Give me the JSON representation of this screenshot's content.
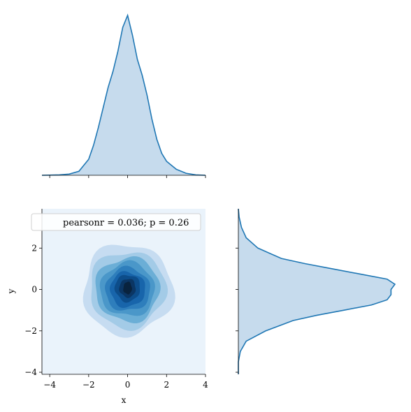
{
  "chart_data": {
    "type": "jointplot-kde",
    "xlabel": "x",
    "ylabel": "y",
    "xlim": [
      -4.4,
      4.0
    ],
    "ylim": [
      -4.1,
      3.9
    ],
    "x_ticks": [
      -4,
      -2,
      0,
      2,
      4
    ],
    "y_ticks": [
      -4,
      -2,
      0,
      2
    ],
    "x_tick_labels": [
      "−4",
      "−2",
      "0",
      "2",
      "4"
    ],
    "y_tick_labels": [
      "−4",
      "−2",
      "0",
      "2"
    ],
    "annotation": "pearsonr = 0.036; p = 0.26",
    "joint": {
      "center": [
        0.0,
        0.0
      ],
      "levels": [
        {
          "rx": 2.3,
          "ry": 2.2,
          "color": "#c6dcf1"
        },
        {
          "rx": 1.95,
          "ry": 1.85,
          "color": "#a3cbe7"
        },
        {
          "rx": 1.65,
          "ry": 1.55,
          "color": "#6baed6"
        },
        {
          "rx": 1.4,
          "ry": 1.3,
          "color": "#4a97c9"
        },
        {
          "rx": 1.15,
          "ry": 1.05,
          "color": "#2e7ebc"
        },
        {
          "rx": 0.9,
          "ry": 0.85,
          "color": "#1865ab"
        },
        {
          "rx": 0.65,
          "ry": 0.65,
          "color": "#0d4d8a"
        },
        {
          "rx": 0.42,
          "ry": 0.45,
          "color": "#0b3664"
        },
        {
          "rx": 0.22,
          "ry": 0.3,
          "color": "#09233e"
        }
      ],
      "background": "#eaf3fb"
    },
    "marginal_x": {
      "x": [
        -4.4,
        -3.5,
        -3.0,
        -2.5,
        -2.0,
        -1.75,
        -1.5,
        -1.25,
        -1.0,
        -0.75,
        -0.5,
        -0.25,
        0.0,
        0.25,
        0.5,
        0.75,
        1.0,
        1.25,
        1.5,
        1.75,
        2.0,
        2.5,
        3.0,
        3.5,
        4.0
      ],
      "density": [
        0.0,
        0.001,
        0.003,
        0.01,
        0.04,
        0.075,
        0.12,
        0.17,
        0.22,
        0.26,
        0.31,
        0.37,
        0.4,
        0.35,
        0.29,
        0.25,
        0.2,
        0.14,
        0.09,
        0.055,
        0.035,
        0.015,
        0.005,
        0.001,
        0.0
      ]
    },
    "marginal_y": {
      "y": [
        -4.1,
        -3.5,
        -3.0,
        -2.5,
        -2.0,
        -1.5,
        -1.25,
        -1.0,
        -0.75,
        -0.5,
        -0.25,
        0.0,
        0.25,
        0.5,
        0.75,
        1.0,
        1.25,
        1.5,
        2.0,
        2.5,
        3.0,
        3.5,
        3.9
      ],
      "density": [
        0.0,
        0.0,
        0.005,
        0.02,
        0.07,
        0.14,
        0.2,
        0.27,
        0.34,
        0.38,
        0.39,
        0.39,
        0.4,
        0.38,
        0.31,
        0.24,
        0.17,
        0.11,
        0.05,
        0.02,
        0.008,
        0.002,
        0.0
      ]
    },
    "line_color": "#1f77b4",
    "fill_color": "#c6dbed"
  }
}
